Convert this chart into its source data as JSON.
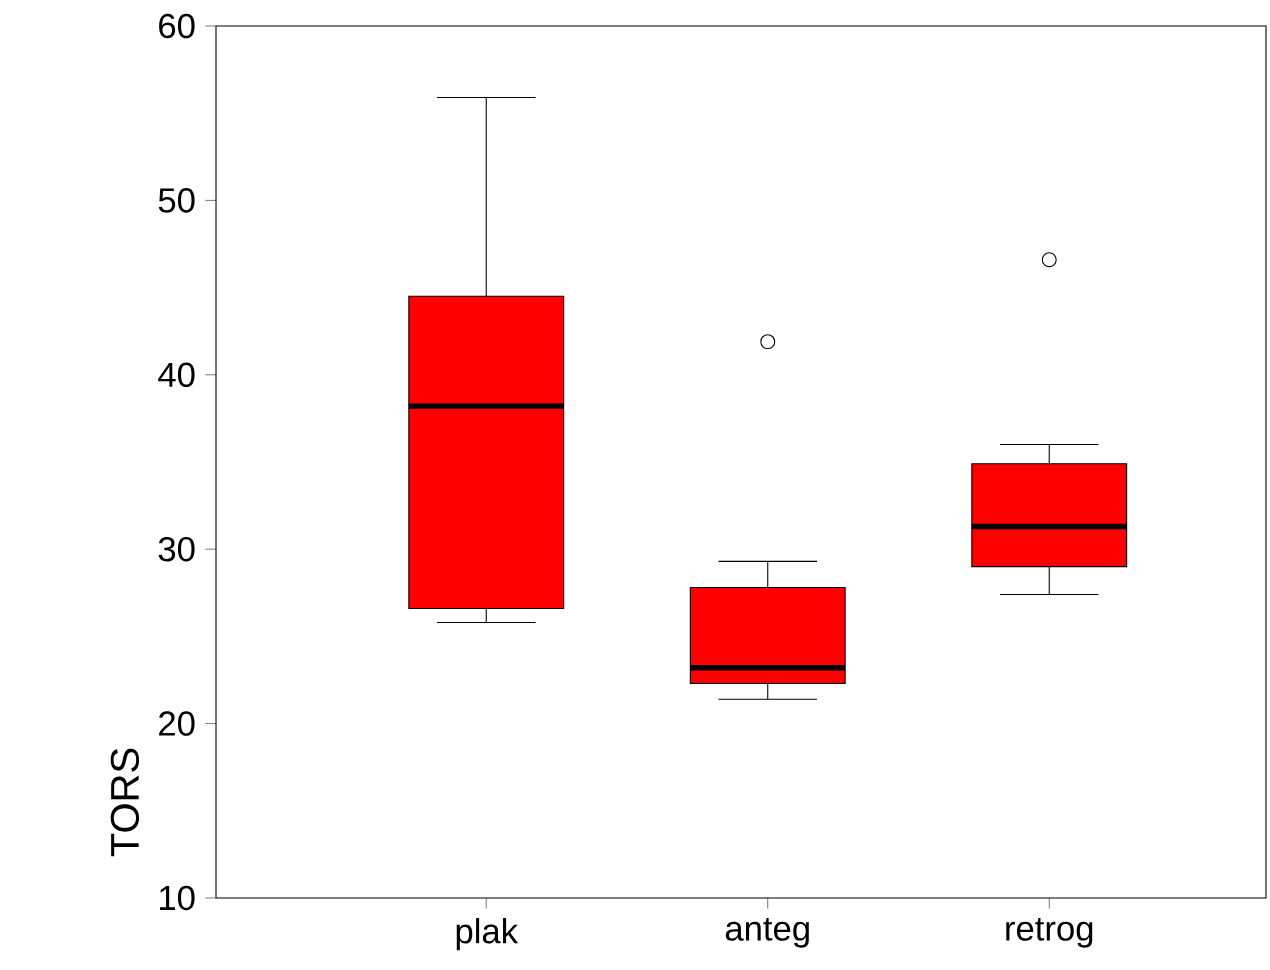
{
  "chart_data": {
    "type": "box",
    "ylabel": "TORS",
    "categories": [
      "plak",
      "anteg",
      "retrog"
    ],
    "color": "#ff0000",
    "boxes": [
      {
        "low": 25.8,
        "q1": 26.6,
        "median": 38.2,
        "q3": 44.5,
        "high": 55.9
      },
      {
        "low": 21.4,
        "q1": 22.3,
        "median": 23.2,
        "q3": 27.8,
        "high": 29.3,
        "outliers": [
          41.9
        ]
      },
      {
        "low": 27.4,
        "q1": 29.0,
        "median": 31.3,
        "q3": 34.9,
        "high": 36.0,
        "outliers": [
          46.6
        ]
      }
    ],
    "ylim": [
      10,
      60
    ],
    "yticks": [
      10,
      20,
      30,
      40,
      50,
      60
    ],
    "grid": false
  }
}
